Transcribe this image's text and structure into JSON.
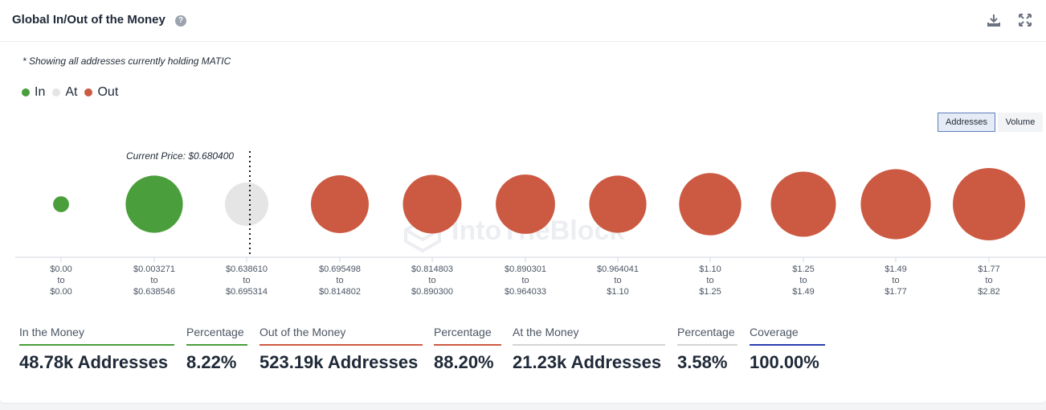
{
  "header": {
    "title": "Global In/Out of the Money"
  },
  "note": "* Showing all addresses currently holding MATIC",
  "legend": [
    {
      "label": "In",
      "color": "#4a9e3b"
    },
    {
      "label": "At",
      "color": "#e5e5e5"
    },
    {
      "label": "Out",
      "color": "#cc5a42"
    }
  ],
  "toggles": {
    "addresses": "Addresses",
    "volume": "Volume"
  },
  "watermark": "IntoTheBlock",
  "current_price_label": "Current Price: $0.680400",
  "chart_data": {
    "type": "bubble",
    "current_price": 0.6804,
    "colors": {
      "in": "#4a9e3b",
      "at": "#e5e5e5",
      "out": "#cc5a42"
    },
    "buckets": [
      {
        "from": "$0.00",
        "to": "$0.00",
        "status": "in",
        "relative_size": 0.22
      },
      {
        "from": "$0.003271",
        "to": "$0.638546",
        "status": "in",
        "relative_size": 0.79
      },
      {
        "from": "$0.638610",
        "to": "$0.695314",
        "status": "at",
        "relative_size": 0.6
      },
      {
        "from": "$0.695498",
        "to": "$0.814802",
        "status": "out",
        "relative_size": 0.8
      },
      {
        "from": "$0.814803",
        "to": "$0.890300",
        "status": "out",
        "relative_size": 0.81
      },
      {
        "from": "$0.890301",
        "to": "$0.964033",
        "status": "out",
        "relative_size": 0.82
      },
      {
        "from": "$0.964041",
        "to": "$1.10",
        "status": "out",
        "relative_size": 0.79
      },
      {
        "from": "$1.10",
        "to": "$1.25",
        "status": "out",
        "relative_size": 0.86
      },
      {
        "from": "$1.25",
        "to": "$1.49",
        "status": "out",
        "relative_size": 0.9
      },
      {
        "from": "$1.49",
        "to": "$1.77",
        "status": "out",
        "relative_size": 0.97
      },
      {
        "from": "$1.77",
        "to": "$2.82",
        "status": "out",
        "relative_size": 1.0
      }
    ],
    "to_word": "to"
  },
  "stats": [
    {
      "label": "In the Money",
      "value": "48.78k Addresses",
      "color": "#4a9e3b"
    },
    {
      "label": "Percentage",
      "value": "8.22%",
      "color": "#4a9e3b"
    },
    {
      "label": "Out of the Money",
      "value": "523.19k Addresses",
      "color": "#cc5a42"
    },
    {
      "label": "Percentage",
      "value": "88.20%",
      "color": "#cc5a42"
    },
    {
      "label": "At the Money",
      "value": "21.23k Addresses",
      "color": "#d4d4d4"
    },
    {
      "label": "Percentage",
      "value": "3.58%",
      "color": "#d4d4d4"
    },
    {
      "label": "Coverage",
      "value": "100.00%",
      "color": "#2c3fb0"
    }
  ]
}
